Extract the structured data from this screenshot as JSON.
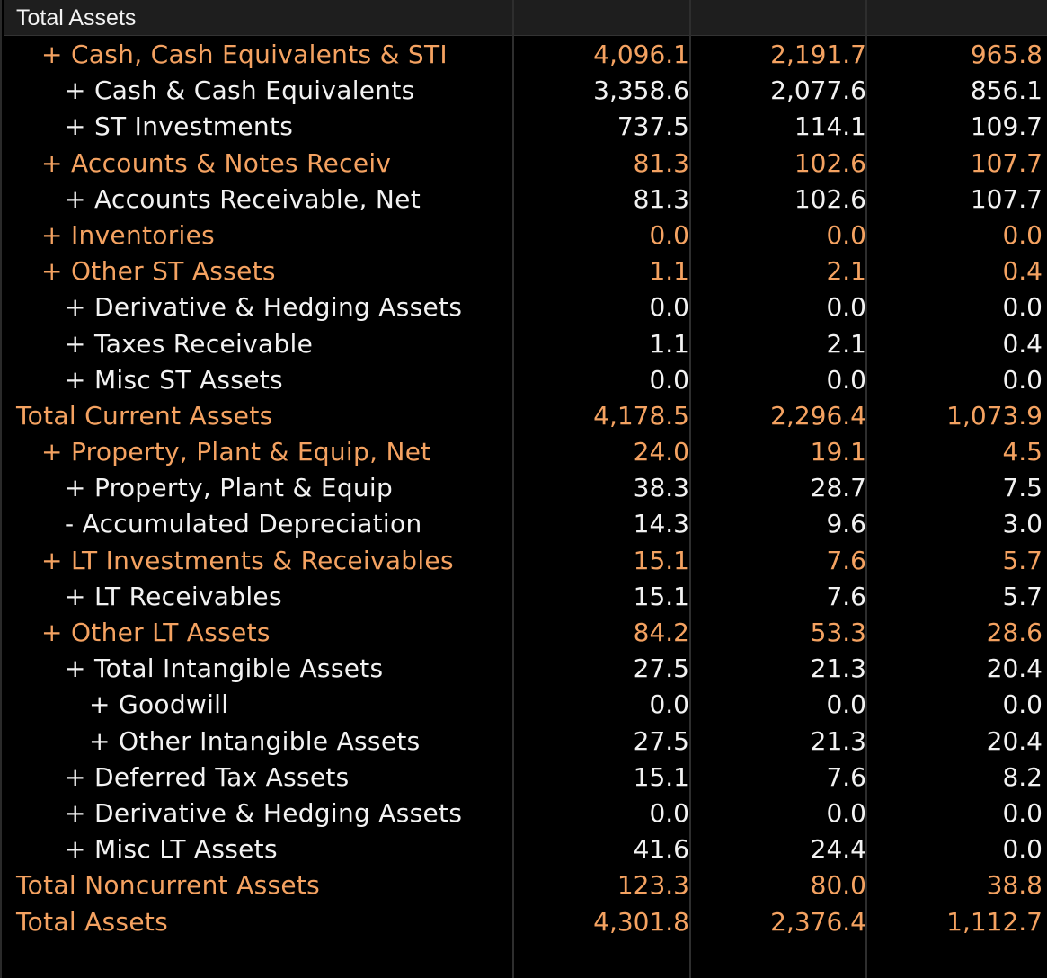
{
  "header": {
    "title": "Total Assets"
  },
  "colors": {
    "highlight": "#f4a261",
    "normal": "#f2f2f2",
    "background": "#000000",
    "header_bg": "#1e1e1e"
  },
  "rows": [
    {
      "label": "+ Cash, Cash Equivalents & STI",
      "values": [
        "4,096.1",
        "2,191.7",
        "965.8"
      ],
      "style": "orange",
      "indent": 1
    },
    {
      "label": "+ Cash & Cash Equivalents",
      "values": [
        "3,358.6",
        "2,077.6",
        "856.1"
      ],
      "style": "white",
      "indent": 2
    },
    {
      "label": "+ ST Investments",
      "values": [
        "737.5",
        "114.1",
        "109.7"
      ],
      "style": "white",
      "indent": 2
    },
    {
      "label": "+ Accounts & Notes Receiv",
      "values": [
        "81.3",
        "102.6",
        "107.7"
      ],
      "style": "orange",
      "indent": 1
    },
    {
      "label": "+ Accounts Receivable, Net",
      "values": [
        "81.3",
        "102.6",
        "107.7"
      ],
      "style": "white",
      "indent": 2
    },
    {
      "label": "+ Inventories",
      "values": [
        "0.0",
        "0.0",
        "0.0"
      ],
      "style": "orange",
      "indent": 1
    },
    {
      "label": "+ Other ST Assets",
      "values": [
        "1.1",
        "2.1",
        "0.4"
      ],
      "style": "orange",
      "indent": 1
    },
    {
      "label": "+ Derivative & Hedging Assets",
      "values": [
        "0.0",
        "0.0",
        "0.0"
      ],
      "style": "white",
      "indent": 2
    },
    {
      "label": "+ Taxes Receivable",
      "values": [
        "1.1",
        "2.1",
        "0.4"
      ],
      "style": "white",
      "indent": 2
    },
    {
      "label": "+ Misc ST Assets",
      "values": [
        "0.0",
        "0.0",
        "0.0"
      ],
      "style": "white",
      "indent": 2
    },
    {
      "label": "Total Current Assets",
      "values": [
        "4,178.5",
        "2,296.4",
        "1,073.9"
      ],
      "style": "orange",
      "indent": 0
    },
    {
      "label": "+ Property, Plant & Equip, Net",
      "values": [
        "24.0",
        "19.1",
        "4.5"
      ],
      "style": "orange",
      "indent": 1
    },
    {
      "label": "+ Property, Plant & Equip",
      "values": [
        "38.3",
        "28.7",
        "7.5"
      ],
      "style": "white",
      "indent": 2
    },
    {
      "label": "- Accumulated Depreciation",
      "values": [
        "14.3",
        "9.6",
        "3.0"
      ],
      "style": "white",
      "indent": 2
    },
    {
      "label": "+ LT Investments & Receivables",
      "values": [
        "15.1",
        "7.6",
        "5.7"
      ],
      "style": "orange",
      "indent": 1
    },
    {
      "label": "+ LT Receivables",
      "values": [
        "15.1",
        "7.6",
        "5.7"
      ],
      "style": "white",
      "indent": 2
    },
    {
      "label": "+ Other LT Assets",
      "values": [
        "84.2",
        "53.3",
        "28.6"
      ],
      "style": "orange",
      "indent": 1
    },
    {
      "label": "+ Total Intangible Assets",
      "values": [
        "27.5",
        "21.3",
        "20.4"
      ],
      "style": "white",
      "indent": 2
    },
    {
      "label": "+ Goodwill",
      "values": [
        "0.0",
        "0.0",
        "0.0"
      ],
      "style": "white",
      "indent": 3
    },
    {
      "label": "+ Other Intangible Assets",
      "values": [
        "27.5",
        "21.3",
        "20.4"
      ],
      "style": "white",
      "indent": 3
    },
    {
      "label": "+ Deferred Tax Assets",
      "values": [
        "15.1",
        "7.6",
        "8.2"
      ],
      "style": "white",
      "indent": 2
    },
    {
      "label": "+ Derivative & Hedging Assets",
      "values": [
        "0.0",
        "0.0",
        "0.0"
      ],
      "style": "white",
      "indent": 2
    },
    {
      "label": "+ Misc LT Assets",
      "values": [
        "41.6",
        "24.4",
        "0.0"
      ],
      "style": "white",
      "indent": 2
    },
    {
      "label": "Total Noncurrent Assets",
      "values": [
        "123.3",
        "80.0",
        "38.8"
      ],
      "style": "orange",
      "indent": 0
    },
    {
      "label": "Total Assets",
      "values": [
        "4,301.8",
        "2,376.4",
        "1,112.7"
      ],
      "style": "orange",
      "indent": 0
    }
  ]
}
